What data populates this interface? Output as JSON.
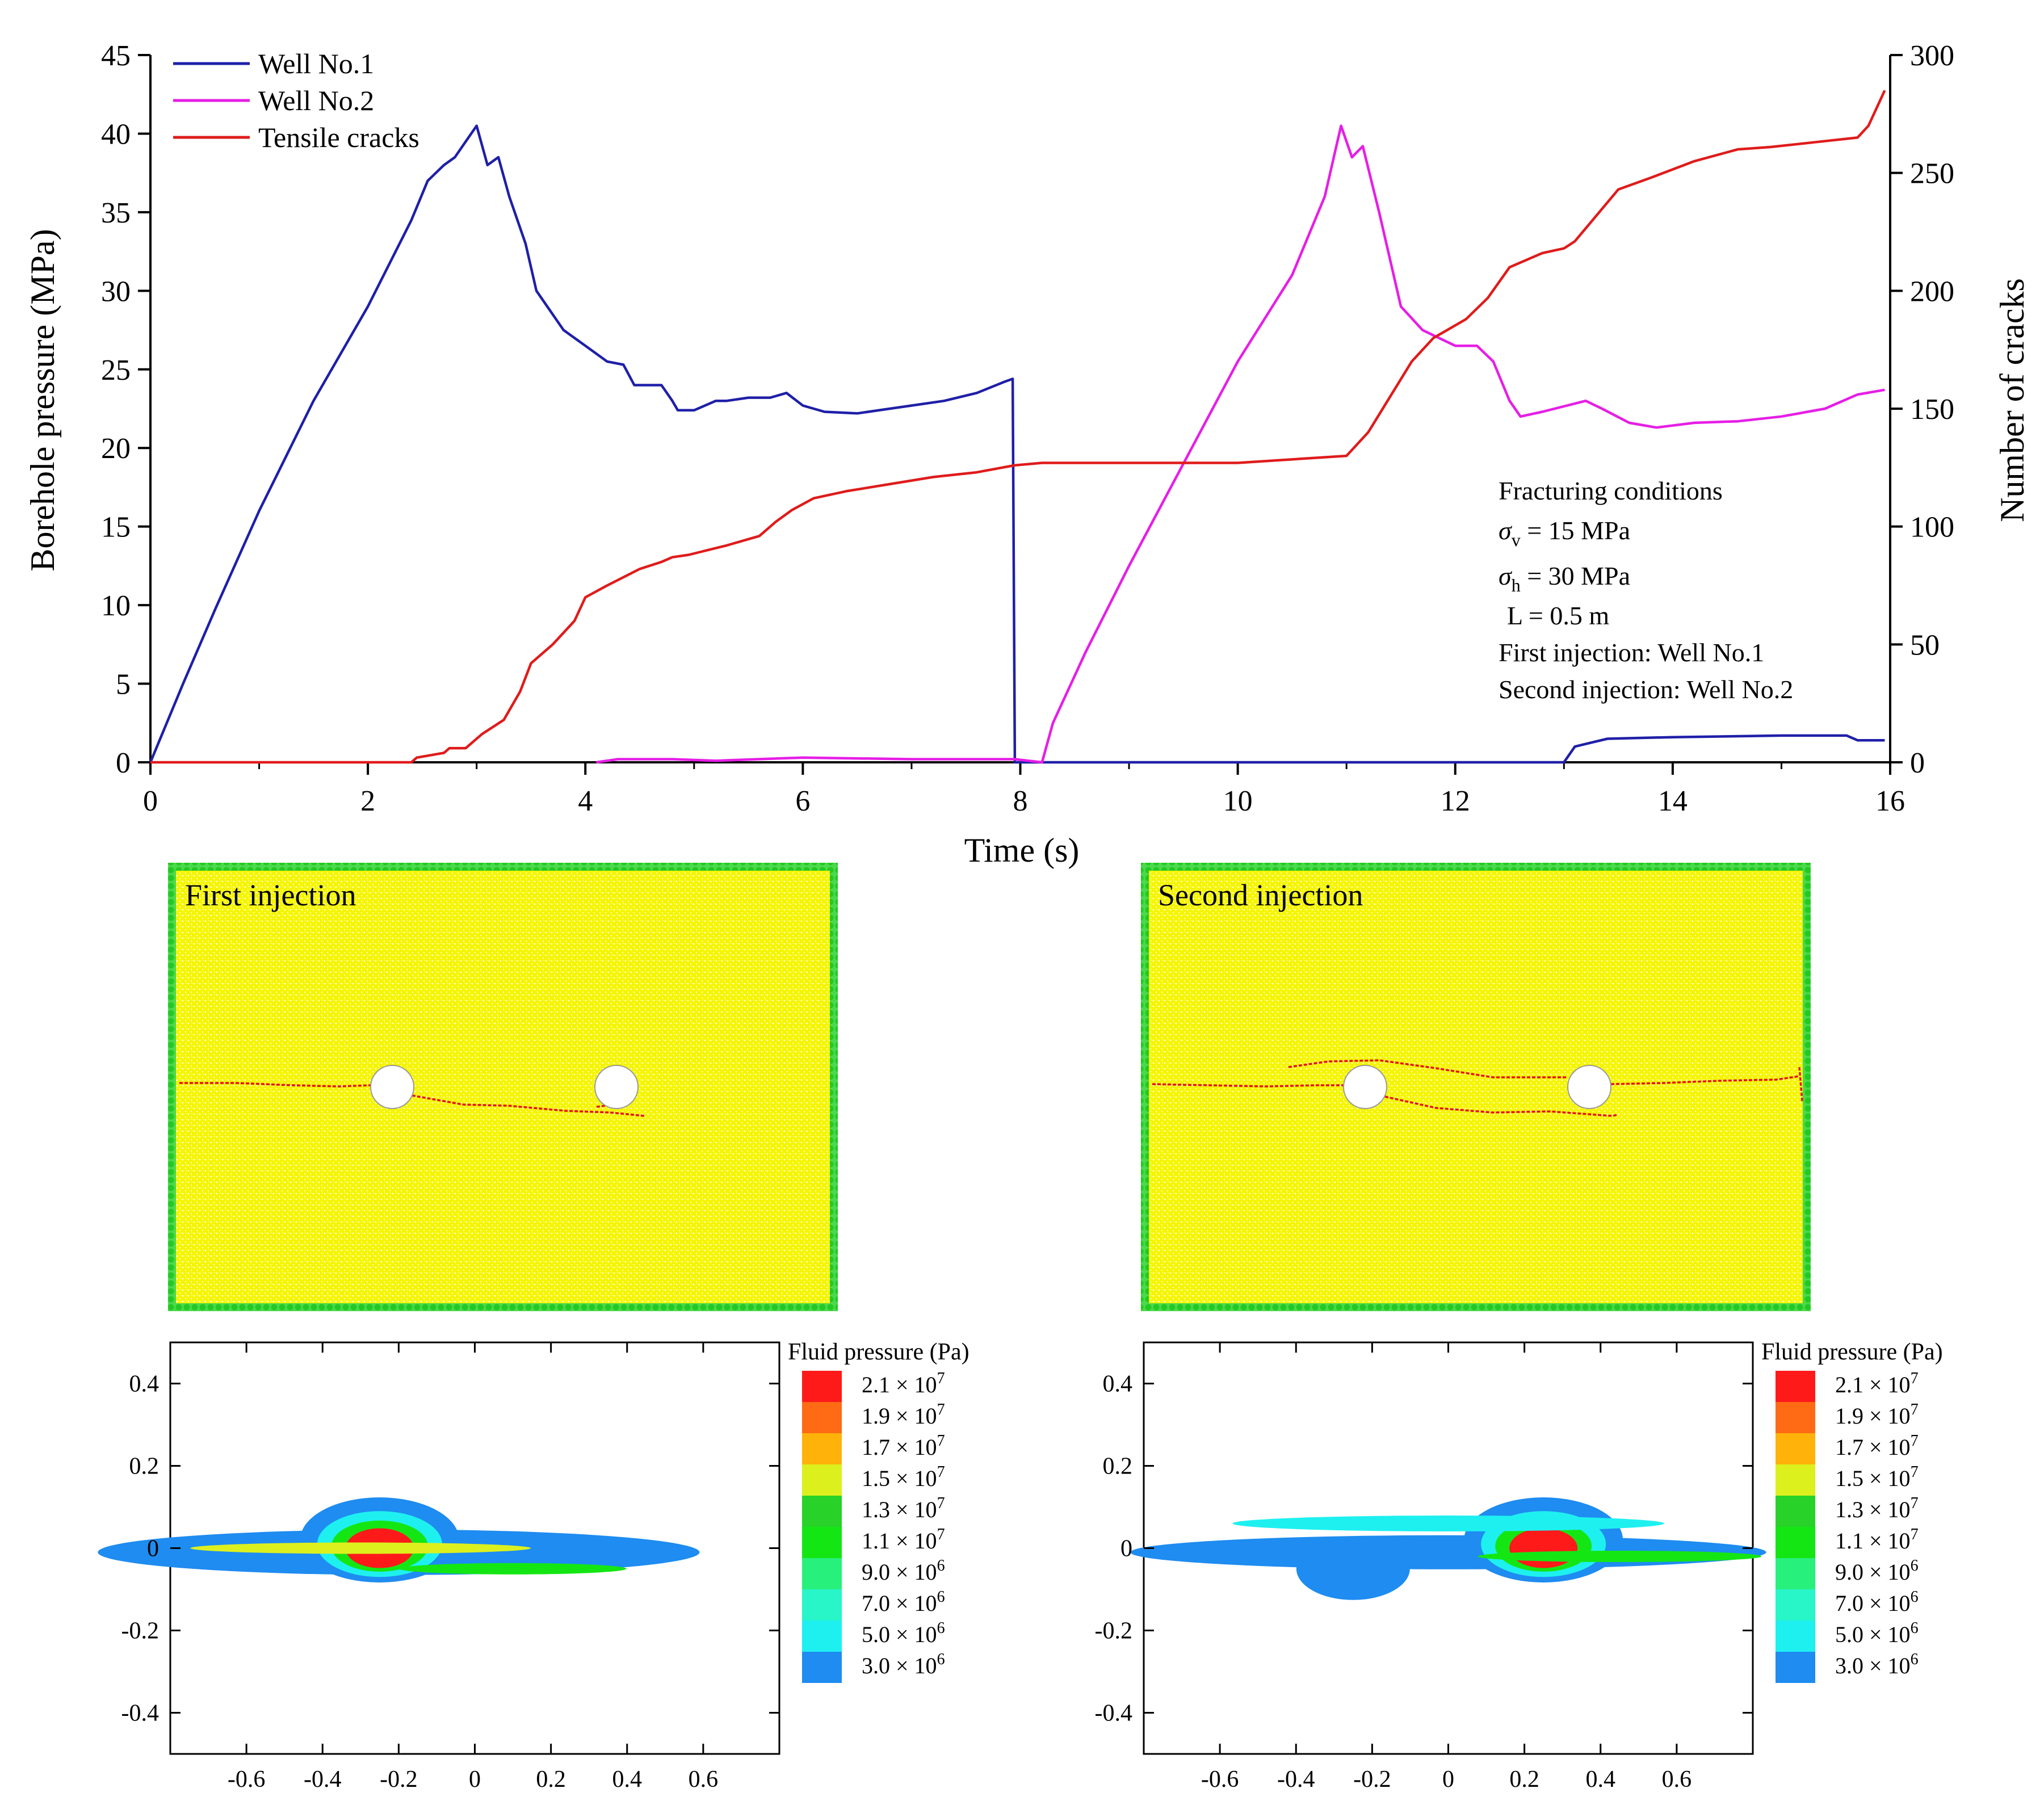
{
  "chart_data": [
    {
      "type": "line",
      "title": "",
      "xlabel": "Time (s)",
      "ylabel": "Borehole pressure (MPa)",
      "y2label": "Number of cracks",
      "xlim": [
        0,
        16
      ],
      "ylim": [
        0,
        45
      ],
      "y2lim": [
        0,
        300
      ],
      "xticks": [
        0,
        2,
        4,
        6,
        8,
        10,
        12,
        14,
        16
      ],
      "yticks": [
        0,
        5,
        10,
        15,
        20,
        25,
        30,
        35,
        40,
        45
      ],
      "y2ticks": [
        0,
        50,
        100,
        150,
        200,
        250,
        300
      ],
      "legend_position": "top-left",
      "series": [
        {
          "name": "Well No.1",
          "axis": "left",
          "color": "#1f1fa8",
          "points": [
            [
              0,
              0
            ],
            [
              0.3,
              5
            ],
            [
              0.6,
              9.8
            ],
            [
              1.0,
              16
            ],
            [
              1.5,
              23
            ],
            [
              2.0,
              29
            ],
            [
              2.4,
              34.5
            ],
            [
              2.55,
              37
            ],
            [
              2.7,
              38
            ],
            [
              2.8,
              38.5
            ],
            [
              2.9,
              39.5
            ],
            [
              3.0,
              40.5
            ],
            [
              3.1,
              38
            ],
            [
              3.2,
              38.5
            ],
            [
              3.3,
              36
            ],
            [
              3.45,
              33
            ],
            [
              3.55,
              30
            ],
            [
              3.8,
              27.5
            ],
            [
              4.0,
              26.5
            ],
            [
              4.2,
              25.5
            ],
            [
              4.35,
              25.3
            ],
            [
              4.45,
              24
            ],
            [
              4.7,
              24
            ],
            [
              4.8,
              23
            ],
            [
              4.85,
              22.4
            ],
            [
              5.0,
              22.4
            ],
            [
              5.2,
              23
            ],
            [
              5.3,
              23
            ],
            [
              5.5,
              23.2
            ],
            [
              5.7,
              23.2
            ],
            [
              5.85,
              23.5
            ],
            [
              6.0,
              22.7
            ],
            [
              6.2,
              22.3
            ],
            [
              6.5,
              22.2
            ],
            [
              6.8,
              22.5
            ],
            [
              7.0,
              22.7
            ],
            [
              7.3,
              23
            ],
            [
              7.6,
              23.5
            ],
            [
              7.85,
              24.2
            ],
            [
              7.93,
              24.4
            ],
            [
              7.95,
              0
            ],
            [
              13.0,
              0
            ],
            [
              13.1,
              1.0
            ],
            [
              13.4,
              1.5
            ],
            [
              14.0,
              1.6
            ],
            [
              15.0,
              1.7
            ],
            [
              15.6,
              1.7
            ],
            [
              15.7,
              1.4
            ],
            [
              15.95,
              1.4
            ]
          ]
        },
        {
          "name": "Well No.2",
          "axis": "left",
          "color": "#e61ee6",
          "points": [
            [
              4.1,
              0
            ],
            [
              4.3,
              0.2
            ],
            [
              4.8,
              0.2
            ],
            [
              5.2,
              0.1
            ],
            [
              6.0,
              0.3
            ],
            [
              7.0,
              0.2
            ],
            [
              7.95,
              0.2
            ],
            [
              8.2,
              0
            ],
            [
              8.3,
              2.5
            ],
            [
              8.6,
              7
            ],
            [
              9.0,
              12.5
            ],
            [
              9.5,
              19
            ],
            [
              10.0,
              25.5
            ],
            [
              10.5,
              31
            ],
            [
              10.8,
              36
            ],
            [
              10.9,
              39
            ],
            [
              10.95,
              40.5
            ],
            [
              11.05,
              38.5
            ],
            [
              11.15,
              39.2
            ],
            [
              11.3,
              35
            ],
            [
              11.5,
              29
            ],
            [
              11.7,
              27.5
            ],
            [
              12.0,
              26.5
            ],
            [
              12.2,
              26.5
            ],
            [
              12.35,
              25.5
            ],
            [
              12.5,
              23
            ],
            [
              12.6,
              22
            ],
            [
              12.8,
              22.3
            ],
            [
              13.2,
              23
            ],
            [
              13.35,
              22.5
            ],
            [
              13.6,
              21.6
            ],
            [
              13.85,
              21.3
            ],
            [
              14.2,
              21.6
            ],
            [
              14.6,
              21.7
            ],
            [
              15.0,
              22
            ],
            [
              15.4,
              22.5
            ],
            [
              15.7,
              23.4
            ],
            [
              15.95,
              23.7
            ]
          ]
        },
        {
          "name": "Tensile cracks",
          "axis": "right",
          "color": "#e01b1b",
          "points": [
            [
              0,
              0
            ],
            [
              2.4,
              0
            ],
            [
              2.45,
              2
            ],
            [
              2.7,
              4
            ],
            [
              2.75,
              6
            ],
            [
              2.9,
              6
            ],
            [
              3.05,
              12
            ],
            [
              3.25,
              18
            ],
            [
              3.4,
              30
            ],
            [
              3.5,
              42
            ],
            [
              3.7,
              50
            ],
            [
              3.9,
              60
            ],
            [
              4.0,
              70
            ],
            [
              4.2,
              75
            ],
            [
              4.5,
              82
            ],
            [
              4.7,
              85
            ],
            [
              4.8,
              87
            ],
            [
              4.95,
              88
            ],
            [
              5.3,
              92
            ],
            [
              5.6,
              96
            ],
            [
              5.75,
              102
            ],
            [
              5.9,
              107
            ],
            [
              6.1,
              112
            ],
            [
              6.4,
              115
            ],
            [
              6.8,
              118
            ],
            [
              7.2,
              121
            ],
            [
              7.6,
              123
            ],
            [
              7.95,
              126
            ],
            [
              8.2,
              127
            ],
            [
              9.0,
              127
            ],
            [
              10.0,
              127
            ],
            [
              11.0,
              130
            ],
            [
              11.2,
              140
            ],
            [
              11.4,
              155
            ],
            [
              11.6,
              170
            ],
            [
              11.8,
              180
            ],
            [
              12.1,
              188
            ],
            [
              12.3,
              197
            ],
            [
              12.5,
              210
            ],
            [
              12.8,
              216
            ],
            [
              13.0,
              218
            ],
            [
              13.1,
              221
            ],
            [
              13.3,
              232
            ],
            [
              13.5,
              243
            ],
            [
              13.8,
              248
            ],
            [
              14.2,
              255
            ],
            [
              14.6,
              260
            ],
            [
              14.9,
              261
            ],
            [
              15.3,
              263
            ],
            [
              15.7,
              265
            ],
            [
              15.8,
              270
            ],
            [
              15.95,
              285
            ]
          ]
        }
      ],
      "annotations": [
        "Fracturing conditions",
        "σv = 15 MPa",
        "σh = 30 MPa",
        "L = 0.5 m",
        "First injection: Well No.1",
        "Second injection: Well No.2"
      ]
    },
    {
      "type": "other",
      "panel": "particle-model",
      "label": "First injection"
    },
    {
      "type": "other",
      "panel": "particle-model",
      "label": "Second injection"
    },
    {
      "type": "heatmap",
      "panel": "fluid-pressure",
      "colorbar_title": "Fluid pressure (Pa)",
      "xlim": [
        -0.8,
        0.8
      ],
      "ylim": [
        -0.5,
        0.5
      ],
      "xticks": [
        "-0.6",
        "-0.4",
        "-0.2",
        "0",
        "0.2",
        "0.4",
        "0.6"
      ],
      "yticks": [
        "0.4",
        "0.2",
        "0",
        "-0.2",
        "-0.4"
      ]
    }
  ],
  "colorbar": {
    "title": "Fluid pressure (Pa)",
    "levels": [
      {
        "mantissa": "2.1",
        "exp": "7",
        "color": "#ff1a1a"
      },
      {
        "mantissa": "1.9",
        "exp": "7",
        "color": "#ff6a14"
      },
      {
        "mantissa": "1.7",
        "exp": "7",
        "color": "#ffb20a"
      },
      {
        "mantissa": "1.5",
        "exp": "7",
        "color": "#dcf01e"
      },
      {
        "mantissa": "1.3",
        "exp": "7",
        "color": "#28d228"
      },
      {
        "mantissa": "1.1",
        "exp": "7",
        "color": "#14e614"
      },
      {
        "mantissa": "9.0",
        "exp": "6",
        "color": "#28f07c"
      },
      {
        "mantissa": "7.0",
        "exp": "6",
        "color": "#28f5c8"
      },
      {
        "mantissa": "5.0",
        "exp": "6",
        "color": "#1ef0f0"
      },
      {
        "mantissa": "3.0",
        "exp": "6",
        "color": "#1e8cf0"
      }
    ],
    "times_symbol": "×",
    "base": "10"
  },
  "panels": {
    "first_label": "First injection",
    "second_label": "Second injection"
  }
}
